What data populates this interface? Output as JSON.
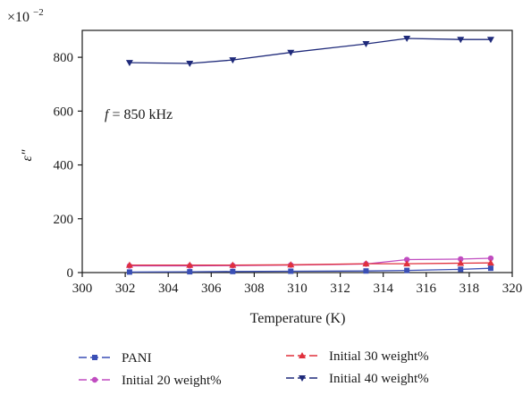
{
  "chart_data": {
    "type": "line",
    "title": "",
    "xlabel": "Temperature (K)",
    "ylabel": "ε″",
    "y_multiplier_label": "×10",
    "y_multiplier_exponent": "−2",
    "annotation": {
      "f_symbol": "f",
      "text": " = 850 kHz"
    },
    "xlim": [
      300,
      320
    ],
    "ylim": [
      0,
      900
    ],
    "xticks": [
      300,
      302,
      304,
      306,
      308,
      310,
      312,
      314,
      316,
      318,
      320
    ],
    "yticks": [
      0,
      200,
      400,
      600,
      800
    ],
    "grid": false,
    "legend_position": "bottom",
    "x": [
      302.2,
      305,
      307,
      309.7,
      313.2,
      315.1,
      317.6,
      319
    ],
    "series": [
      {
        "name": "PANI",
        "marker": "square",
        "color": "#3a4fb5",
        "values": [
          2,
          3,
          4,
          5,
          6,
          8,
          12,
          16
        ]
      },
      {
        "name": "Initial 20 weight%",
        "marker": "circle",
        "color": "#c04cc0",
        "values": [
          25,
          25,
          26,
          28,
          32,
          48,
          50,
          53
        ]
      },
      {
        "name": "Initial 30 weight%",
        "marker": "triangle-up",
        "color": "#e0303c",
        "values": [
          28,
          28,
          28,
          29,
          33,
          33,
          35,
          36
        ]
      },
      {
        "name": "Initial 40 weight%",
        "marker": "triangle-down",
        "color": "#1f2a7a",
        "values": [
          780,
          777,
          790,
          818,
          850,
          870,
          866,
          866
        ]
      }
    ]
  }
}
